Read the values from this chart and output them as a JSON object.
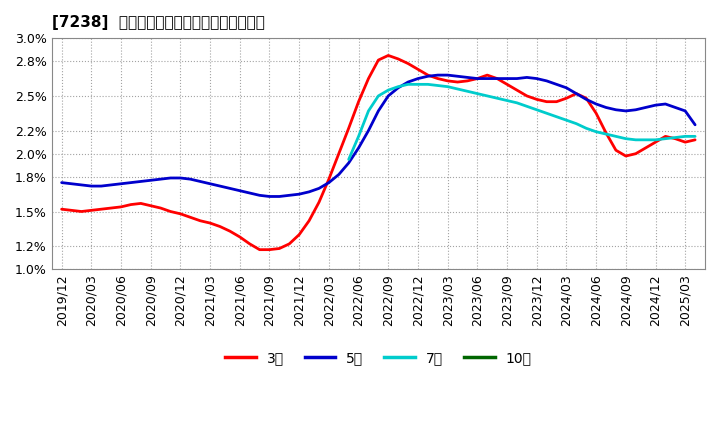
{
  "title": "[7238]  経常利益マージンの標準偏差の推移",
  "ylim": [
    0.01,
    0.03
  ],
  "yticks": [
    0.01,
    0.012,
    0.015,
    0.018,
    0.02,
    0.022,
    0.025,
    0.028,
    0.03
  ],
  "ytick_labels": [
    "1.0%",
    "1.2%",
    "1.5%",
    "1.8%",
    "2.0%",
    "2.2%",
    "2.5%",
    "2.8%",
    "3.0%"
  ],
  "background_color": "#ffffff",
  "plot_bg_color": "#ffffff",
  "grid_color": "#aaaaaa",
  "series": {
    "3year": {
      "color": "#ff0000",
      "label": "3年",
      "x": [
        0,
        1,
        2,
        3,
        4,
        5,
        6,
        7,
        8,
        9,
        10,
        11,
        12,
        13,
        14,
        15,
        16,
        17,
        18,
        19,
        20,
        21,
        22,
        23,
        24,
        25,
        26,
        27,
        28,
        29,
        30,
        31,
        32,
        33,
        34,
        35,
        36,
        37,
        38,
        39,
        40,
        41,
        42,
        43,
        44,
        45,
        46,
        47,
        48,
        49,
        50,
        51,
        52,
        53,
        54,
        55,
        56,
        57,
        58,
        59,
        60,
        61,
        62,
        63,
        64
      ],
      "y": [
        0.0152,
        0.0151,
        0.015,
        0.0151,
        0.0152,
        0.0153,
        0.0154,
        0.0156,
        0.0157,
        0.0155,
        0.0153,
        0.015,
        0.0148,
        0.0145,
        0.0142,
        0.014,
        0.0137,
        0.0133,
        0.0128,
        0.0122,
        0.0117,
        0.0117,
        0.0118,
        0.0122,
        0.013,
        0.0142,
        0.0158,
        0.0178,
        0.02,
        0.0222,
        0.0245,
        0.0265,
        0.0281,
        0.0285,
        0.0282,
        0.0278,
        0.0273,
        0.0268,
        0.0265,
        0.0263,
        0.0262,
        0.0263,
        0.0265,
        0.0268,
        0.0265,
        0.026,
        0.0255,
        0.025,
        0.0247,
        0.0245,
        0.0245,
        0.0248,
        0.0252,
        0.0248,
        0.0235,
        0.0218,
        0.0203,
        0.0198,
        0.02,
        0.0205,
        0.021,
        0.0215,
        0.0213,
        0.021,
        0.0212
      ]
    },
    "5year": {
      "color": "#0000cc",
      "label": "5年",
      "x": [
        0,
        1,
        2,
        3,
        4,
        5,
        6,
        7,
        8,
        9,
        10,
        11,
        12,
        13,
        14,
        15,
        16,
        17,
        18,
        19,
        20,
        21,
        22,
        23,
        24,
        25,
        26,
        27,
        28,
        29,
        30,
        31,
        32,
        33,
        34,
        35,
        36,
        37,
        38,
        39,
        40,
        41,
        42,
        43,
        44,
        45,
        46,
        47,
        48,
        49,
        50,
        51,
        52,
        53,
        54,
        55,
        56,
        57,
        58,
        59,
        60,
        61,
        62,
        63,
        64
      ],
      "y": [
        0.0175,
        0.0174,
        0.0173,
        0.0172,
        0.0172,
        0.0173,
        0.0174,
        0.0175,
        0.0176,
        0.0177,
        0.0178,
        0.0179,
        0.0179,
        0.0178,
        0.0176,
        0.0174,
        0.0172,
        0.017,
        0.0168,
        0.0166,
        0.0164,
        0.0163,
        0.0163,
        0.0164,
        0.0165,
        0.0167,
        0.017,
        0.0175,
        0.0182,
        0.0192,
        0.0205,
        0.022,
        0.0237,
        0.025,
        0.0257,
        0.0262,
        0.0265,
        0.0267,
        0.0268,
        0.0268,
        0.0267,
        0.0266,
        0.0265,
        0.0265,
        0.0265,
        0.0265,
        0.0265,
        0.0266,
        0.0265,
        0.0263,
        0.026,
        0.0257,
        0.0252,
        0.0247,
        0.0243,
        0.024,
        0.0238,
        0.0237,
        0.0238,
        0.024,
        0.0242,
        0.0243,
        0.024,
        0.0237,
        0.0225
      ]
    },
    "7year": {
      "color": "#00cccc",
      "label": "7年",
      "x": [
        29,
        30,
        31,
        32,
        33,
        34,
        35,
        36,
        37,
        38,
        39,
        40,
        41,
        42,
        43,
        44,
        45,
        46,
        47,
        48,
        49,
        50,
        51,
        52,
        53,
        54,
        55,
        56,
        57,
        58,
        59,
        60,
        61,
        62,
        63,
        64
      ],
      "y": [
        0.0195,
        0.0215,
        0.0237,
        0.025,
        0.0255,
        0.0258,
        0.026,
        0.026,
        0.026,
        0.0259,
        0.0258,
        0.0256,
        0.0254,
        0.0252,
        0.025,
        0.0248,
        0.0246,
        0.0244,
        0.0241,
        0.0238,
        0.0235,
        0.0232,
        0.0229,
        0.0226,
        0.0222,
        0.0219,
        0.0217,
        0.0215,
        0.0213,
        0.0212,
        0.0212,
        0.0212,
        0.0213,
        0.0214,
        0.0215,
        0.0215
      ]
    },
    "10year": {
      "color": "#006600",
      "label": "10年",
      "x": [],
      "y": []
    }
  },
  "x_tick_positions": [
    0,
    3,
    6,
    9,
    12,
    15,
    18,
    21,
    24,
    27,
    30,
    33,
    36,
    39,
    42,
    45,
    48,
    51,
    54,
    57,
    60,
    63
  ],
  "x_tick_labels": [
    "2019/12",
    "2020/03",
    "2020/06",
    "2020/09",
    "2020/12",
    "2021/03",
    "2021/06",
    "2021/09",
    "2021/12",
    "2022/03",
    "2022/06",
    "2022/09",
    "2022/12",
    "2023/03",
    "2023/06",
    "2023/09",
    "2023/12",
    "2024/03",
    "2024/06",
    "2024/09",
    "2024/12",
    "2025/03"
  ],
  "legend_entries": [
    "3年",
    "5年",
    "7年",
    "10年"
  ],
  "legend_colors": [
    "#ff0000",
    "#0000cc",
    "#00cccc",
    "#006600"
  ],
  "linewidth": 2.0
}
